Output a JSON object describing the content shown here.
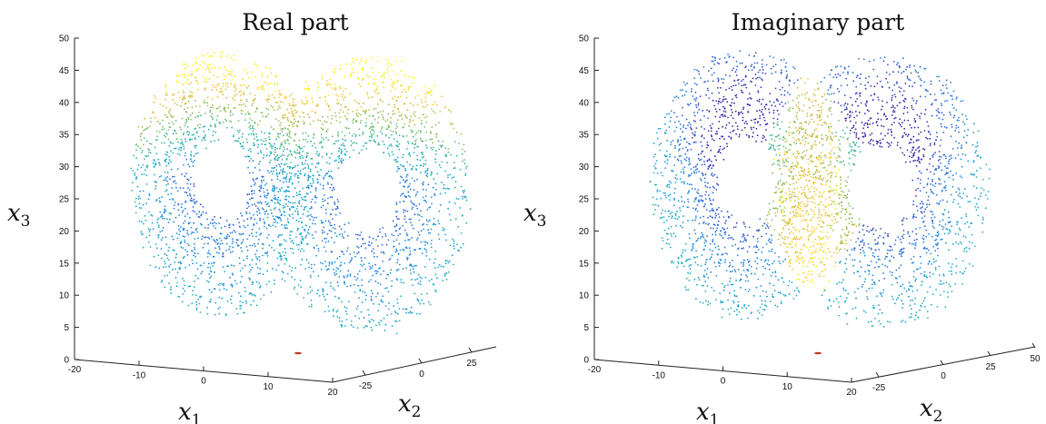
{
  "chart_data": [
    {
      "type": "scatter",
      "subtype": "3d-scatter",
      "title": "Real part",
      "xlabel": "x",
      "xlabel_sub": "1",
      "ylabel": "x",
      "ylabel_sub": "2",
      "zlabel": "x",
      "zlabel_sub": "3",
      "xlim": [
        -20,
        20
      ],
      "ylim": [
        -25,
        25
      ],
      "zlim": [
        0,
        50
      ],
      "x_ticks": [
        "-20",
        "-10",
        "0",
        "10",
        "20"
      ],
      "y_ticks": [
        "-25",
        "0",
        "25"
      ],
      "z_ticks": [
        "0",
        "5",
        "10",
        "15",
        "20",
        "25",
        "30",
        "35",
        "40",
        "45",
        "50"
      ],
      "colormap": "parula",
      "colormap_colors": [
        "#3e26a8",
        "#2f6fe0",
        "#15a3d6",
        "#33b8a0",
        "#93bf55",
        "#f4bb2f",
        "#f9f50f"
      ],
      "lobe_centers": [
        [
          -8.5,
          -8.5,
          27
        ],
        [
          8.5,
          8.5,
          27
        ]
      ],
      "outlier_point": [
        16,
        0,
        0
      ],
      "outlier_color": "#c0392b"
    },
    {
      "type": "scatter",
      "subtype": "3d-scatter",
      "title": "Imaginary part",
      "xlabel": "x",
      "xlabel_sub": "1",
      "ylabel": "x",
      "ylabel_sub": "2",
      "zlabel": "x",
      "zlabel_sub": "3",
      "xlim": [
        -20,
        20
      ],
      "ylim": [
        -25,
        50
      ],
      "zlim": [
        0,
        50
      ],
      "x_ticks": [
        "-20",
        "-10",
        "0",
        "10",
        "20"
      ],
      "y_ticks": [
        "-25",
        "0",
        "25",
        "50"
      ],
      "z_ticks": [
        "0",
        "5",
        "10",
        "15",
        "20",
        "25",
        "30",
        "35",
        "40",
        "45",
        "50"
      ],
      "colormap": "parula",
      "colormap_colors": [
        "#3e26a8",
        "#2f6fe0",
        "#15a3d6",
        "#33b8a0",
        "#93bf55",
        "#f4bb2f",
        "#f9f50f"
      ],
      "lobe_centers": [
        [
          -8.5,
          -8.5,
          27
        ],
        [
          8.5,
          8.5,
          27
        ]
      ],
      "outlier_point": [
        16,
        0,
        0
      ],
      "outlier_color": "#c0392b"
    }
  ]
}
